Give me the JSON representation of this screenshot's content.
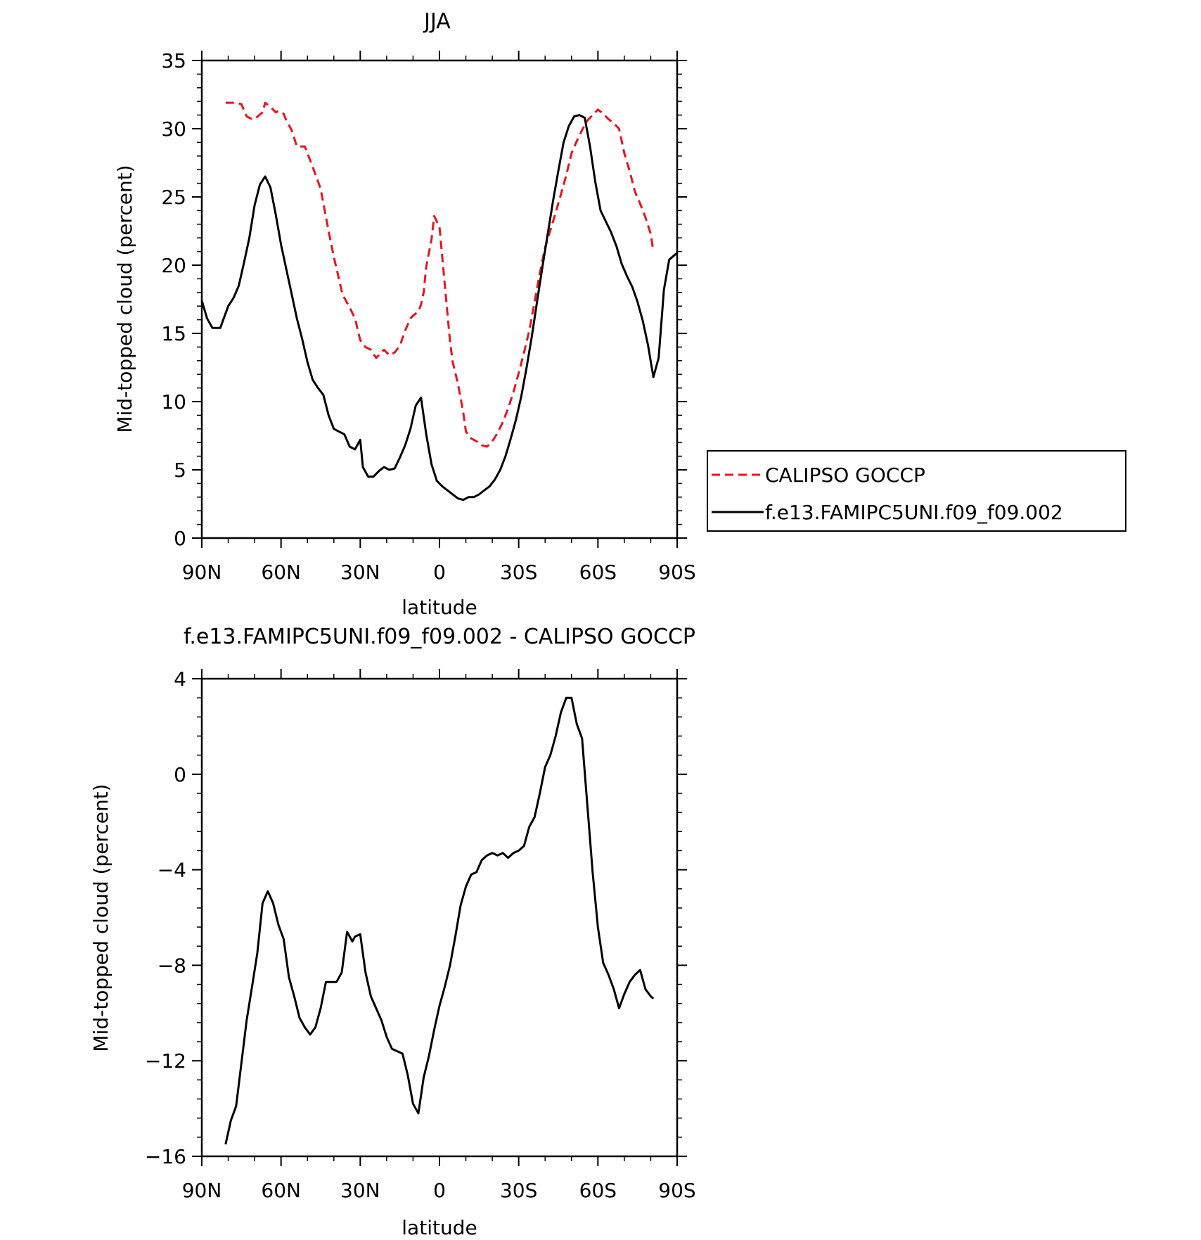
{
  "chart_data": [
    {
      "type": "line",
      "title": "JJA",
      "xlabel": "latitude",
      "ylabel": "Mid-topped cloud (percent)",
      "xlim": [
        90,
        -90
      ],
      "ylim": [
        0,
        35
      ],
      "x_ticks": [
        90,
        60,
        30,
        0,
        -30,
        -60,
        -90
      ],
      "x_tick_labels": [
        "90N",
        "60N",
        "30N",
        "0",
        "30S",
        "60S",
        "90S"
      ],
      "y_ticks": [
        0,
        5,
        10,
        15,
        20,
        25,
        30,
        35
      ],
      "y_tick_labels": [
        "0",
        "5",
        "10",
        "15",
        "20",
        "25",
        "30",
        "35"
      ],
      "legend": "outside-right",
      "series": [
        {
          "name": "CALIPSO GOCCP",
          "color": "#e8141e",
          "dash": "dashed",
          "x": [
            81,
            78,
            77,
            75,
            73,
            71,
            70,
            67,
            66,
            64,
            62,
            61,
            59,
            58,
            56,
            54,
            51,
            48,
            45,
            42,
            40,
            37,
            36,
            34,
            32,
            30,
            28,
            26,
            24,
            21,
            19,
            17,
            15,
            13,
            11,
            10,
            8,
            7,
            6,
            5,
            3,
            2,
            0,
            -2,
            -4,
            -5,
            -7,
            -9,
            -10,
            -12,
            -14,
            -16,
            -18,
            -20,
            -22,
            -24,
            -26,
            -28,
            -30,
            -32,
            -34,
            -36,
            -38,
            -40,
            -43,
            -46,
            -48,
            -50,
            -52,
            -54,
            -56,
            -58,
            -60,
            -62,
            -64,
            -66,
            -68,
            -70,
            -72,
            -74,
            -76,
            -78,
            -80,
            -81
          ],
          "y": [
            31.9,
            31.9,
            31.9,
            31.8,
            30.9,
            30.7,
            30.7,
            31.2,
            31.9,
            31.6,
            31.2,
            31.3,
            31.1,
            30.6,
            29.9,
            28.7,
            28.7,
            27.2,
            25.6,
            22.5,
            20.6,
            18.1,
            17.6,
            16.9,
            16.1,
            14.5,
            14.0,
            13.8,
            13.2,
            13.8,
            13.4,
            13.6,
            14.1,
            15.2,
            16.1,
            16.3,
            16.6,
            17.1,
            18.0,
            19.9,
            21.9,
            23.6,
            22.8,
            18.6,
            14.4,
            12.9,
            11.3,
            9.2,
            7.8,
            7.3,
            7.1,
            6.8,
            6.7,
            7.1,
            7.7,
            8.5,
            9.5,
            10.7,
            12.1,
            13.6,
            15.2,
            17.3,
            19.4,
            21.3,
            23.2,
            25.2,
            26.6,
            28.2,
            29.1,
            29.9,
            30.6,
            31.0,
            31.4,
            31.1,
            30.7,
            30.4,
            30.0,
            28.2,
            26.9,
            25.4,
            24.5,
            23.5,
            22.3,
            21.0
          ]
        },
        {
          "name": "f.e13.FAMIPC5UNI.f09_f09.002",
          "color": "#000000",
          "dash": "solid",
          "x": [
            90,
            88,
            86,
            83,
            80,
            78,
            76,
            74,
            72,
            70,
            68,
            66,
            64,
            62,
            60,
            58,
            56,
            54,
            52,
            50,
            48,
            46,
            44,
            42,
            40,
            38,
            36,
            34,
            32,
            30,
            29,
            27,
            25,
            23,
            21,
            19,
            17,
            15,
            13,
            11,
            9,
            7,
            5,
            3,
            1,
            -1,
            -3,
            -5,
            -7,
            -9,
            -11,
            -13,
            -15,
            -17,
            -19,
            -21,
            -23,
            -25,
            -27,
            -29,
            -31,
            -33,
            -35,
            -37,
            -39,
            -41,
            -43,
            -45,
            -47,
            -49,
            -51,
            -53,
            -55,
            -57,
            -59,
            -61,
            -63,
            -65,
            -67,
            -69,
            -71,
            -73,
            -75,
            -77,
            -79,
            -81,
            -83,
            -85,
            -87,
            -90
          ],
          "y": [
            17.4,
            16.1,
            15.4,
            15.4,
            17.0,
            17.6,
            18.5,
            20.2,
            22.0,
            24.4,
            25.9,
            26.5,
            25.7,
            23.7,
            21.5,
            19.7,
            17.9,
            16.1,
            14.6,
            12.9,
            11.6,
            11.0,
            10.5,
            9.0,
            8.0,
            7.8,
            7.6,
            6.7,
            6.5,
            7.2,
            5.2,
            4.5,
            4.5,
            4.9,
            5.2,
            5.0,
            5.1,
            5.9,
            6.8,
            8.0,
            9.7,
            10.3,
            7.6,
            5.4,
            4.2,
            3.8,
            3.5,
            3.2,
            2.9,
            2.8,
            3.0,
            3.0,
            3.2,
            3.5,
            3.8,
            4.3,
            5.0,
            6.0,
            7.3,
            8.7,
            10.4,
            12.5,
            14.8,
            17.4,
            19.9,
            22.3,
            24.7,
            26.9,
            29.0,
            30.2,
            30.9,
            31.0,
            30.8,
            28.7,
            26.1,
            24.0,
            23.2,
            22.4,
            21.4,
            20.1,
            19.2,
            18.4,
            17.3,
            15.9,
            14.1,
            11.8,
            13.2,
            18.2,
            20.4,
            20.9
          ]
        }
      ]
    },
    {
      "type": "line",
      "title": "f.e13.FAMIPC5UNI.f09_f09.002 - CALIPSO GOCCP",
      "xlabel": "latitude",
      "ylabel": "Mid-topped cloud (percent)",
      "xlim": [
        90,
        -90
      ],
      "ylim": [
        -16,
        4
      ],
      "x_ticks": [
        90,
        60,
        30,
        0,
        -30,
        -60,
        -90
      ],
      "x_tick_labels": [
        "90N",
        "60N",
        "30N",
        "0",
        "30S",
        "60S",
        "90S"
      ],
      "y_ticks": [
        -16,
        -12,
        -8,
        -4,
        0,
        4
      ],
      "y_tick_labels": [
        "-16",
        "-12",
        "-8",
        "-4",
        "0",
        "4"
      ],
      "series": [
        {
          "color": "#000000",
          "dash": "solid",
          "x": [
            81,
            79,
            77,
            75,
            73,
            71,
            69,
            67,
            65,
            63,
            61,
            59,
            57,
            55,
            53,
            51,
            49,
            47,
            45,
            43,
            41,
            39,
            37,
            35,
            33,
            32,
            30,
            28,
            26,
            24,
            22,
            20,
            18,
            16,
            14,
            12,
            10,
            8,
            6,
            4,
            2,
            0,
            -2,
            -4,
            -6,
            -8,
            -10,
            -12,
            -14,
            -16,
            -18,
            -20,
            -22,
            -24,
            -26,
            -28,
            -30,
            -32,
            -34,
            -36,
            -38,
            -40,
            -42,
            -44,
            -46,
            -48,
            -50,
            -52,
            -54,
            -56,
            -58,
            -60,
            -62,
            -64,
            -66,
            -68,
            -70,
            -72,
            -74,
            -76,
            -78,
            -80,
            -81
          ],
          "y": [
            -15.5,
            -14.5,
            -13.9,
            -12.1,
            -10.3,
            -8.9,
            -7.5,
            -5.4,
            -4.9,
            -5.4,
            -6.3,
            -6.9,
            -8.5,
            -9.3,
            -10.2,
            -10.6,
            -10.9,
            -10.6,
            -9.8,
            -8.7,
            -8.7,
            -8.7,
            -8.3,
            -6.6,
            -7.0,
            -6.8,
            -6.7,
            -8.3,
            -9.3,
            -9.8,
            -10.3,
            -11.0,
            -11.5,
            -11.6,
            -11.7,
            -12.6,
            -13.8,
            -14.2,
            -12.7,
            -11.8,
            -10.7,
            -9.7,
            -8.9,
            -8.0,
            -6.8,
            -5.5,
            -4.7,
            -4.2,
            -4.1,
            -3.6,
            -3.4,
            -3.3,
            -3.4,
            -3.3,
            -3.5,
            -3.3,
            -3.2,
            -3.0,
            -2.2,
            -1.8,
            -0.8,
            0.3,
            0.8,
            1.6,
            2.6,
            3.2,
            3.2,
            2.1,
            1.5,
            -1.3,
            -4.1,
            -6.4,
            -7.9,
            -8.4,
            -9.0,
            -9.8,
            -9.2,
            -8.7,
            -8.4,
            -8.2,
            -9.0,
            -9.3,
            -9.4
          ]
        }
      ]
    }
  ]
}
